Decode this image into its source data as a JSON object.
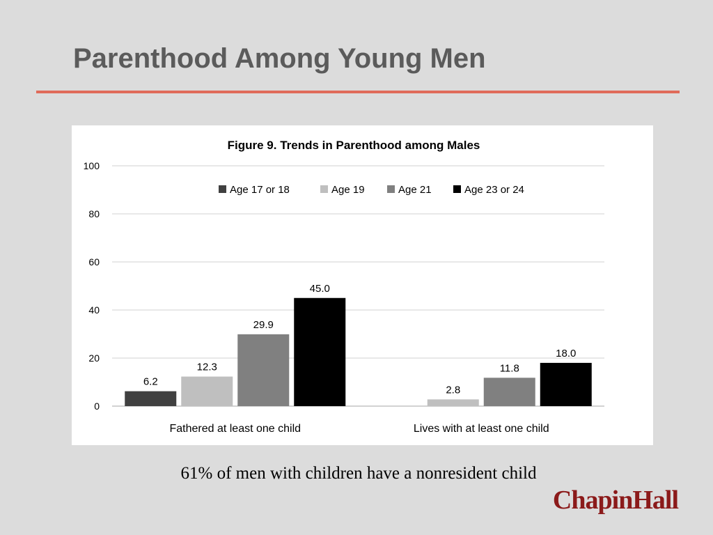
{
  "slide": {
    "title": "Parenthood Among Young Men",
    "caption": "61% of men with children have a nonresident child",
    "logo_text": "ChapinHall"
  },
  "colors": {
    "background": "#dcdcdc",
    "title_rule": "#e06b5a",
    "title_text": "#5b5b5b",
    "logo": "#8b1a1a"
  },
  "chart_data": {
    "type": "bar",
    "title": "Figure  9. Trends in Parenthood among Males",
    "categories": [
      "Fathered at least one child",
      "Lives with at least one child"
    ],
    "series": [
      {
        "name": "Age 17 or 18",
        "color": "#404040",
        "values": [
          6.2,
          null
        ]
      },
      {
        "name": "Age 19",
        "color": "#bfbfbf",
        "values": [
          12.3,
          2.8
        ]
      },
      {
        "name": "Age 21",
        "color": "#808080",
        "values": [
          29.9,
          11.8
        ]
      },
      {
        "name": "Age 23 or 24",
        "color": "#000000",
        "values": [
          45.0,
          18.0
        ]
      }
    ],
    "ylim": [
      0,
      100
    ],
    "yticks": [
      0,
      20,
      40,
      60,
      80,
      100
    ],
    "grid": true,
    "legend": "top-center",
    "data_labels": true
  }
}
